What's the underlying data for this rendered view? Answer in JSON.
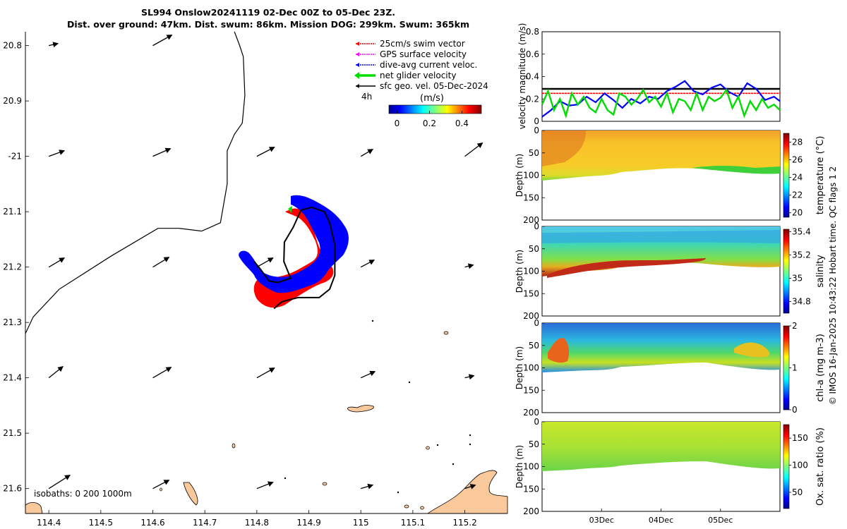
{
  "title": {
    "line1": "SL994 Onslow20241119 02-Dec 00Z to 05-Dec 23Z.",
    "line2": "Dist. over ground: 47km. Dist. swum: 86km. Mission DOG: 299km. Swum: 365km"
  },
  "colors": {
    "swim_vector": "#ff0000",
    "gps_surface": "#ff00ff",
    "dive_avg_current": "#0000ff",
    "net_glider": "#00dd00",
    "sfc_geo_vel": "#000000",
    "land": "#f9c89b",
    "glider_red": "#ff0000",
    "glider_blue": "#0000ff"
  },
  "chart_data": [
    {
      "type": "map",
      "title": "SL994 Onslow20241119 02-Dec 00Z to 05-Dec 23Z.",
      "xlim": [
        114.355,
        115.282
      ],
      "ylim": [
        -21.645,
        -20.775
      ],
      "xticks": [
        114.4,
        114.5,
        114.6,
        114.7,
        114.8,
        114.9,
        115,
        115.1,
        115.2
      ],
      "xtick_labels": [
        "114.4",
        "114.5",
        "114.6",
        "114.7",
        "114.8",
        "114.9",
        "115",
        "115.1",
        "115.2"
      ],
      "yticks": [
        -20.8,
        -20.9,
        -21.0,
        -21.1,
        -21.2,
        -21.3,
        -21.4,
        -21.5,
        -21.6
      ],
      "ytick_labels": [
        "20.8",
        "20.9",
        "-21",
        "21.1",
        "21.2",
        "21.3",
        "21.4",
        "21.5",
        "21.6"
      ],
      "legend": {
        "placement": "top-right",
        "items": [
          "25cm/s swim vector",
          "GPS surface velocity",
          "dive-avg current veloc.",
          "net glider velocity",
          "sfc geo. vel. 05-Dec-2024"
        ],
        "time_label": "4h",
        "colorbar_label": "(m/s)",
        "colorbar_ticks": [
          "0",
          "0.2",
          "0.4"
        ],
        "colorbar_range": [
          -0.05,
          0.52
        ]
      },
      "isobaths_label": "isobaths: 0   200  1000m",
      "geo_velocity_vectors": {
        "lon": [
          114.4,
          114.5,
          114.6,
          114.7,
          114.8,
          114.9,
          115.0,
          115.1,
          115.2
        ],
        "lat": [
          -20.8,
          -21.0,
          -21.2,
          -21.4,
          -21.6
        ],
        "u_ms": [
          [
            0.13,
            null,
            0.27,
            null,
            null,
            null,
            null,
            null,
            null
          ],
          [
            0.22,
            null,
            0.25,
            null,
            0.25,
            null,
            0.17,
            null,
            0.25
          ],
          [
            0.22,
            null,
            0.23,
            null,
            0.23,
            null,
            0.19,
            null,
            0.12
          ],
          [
            0.2,
            null,
            0.26,
            null,
            0.25,
            null,
            0.2,
            null,
            0.13
          ],
          [
            0.3,
            null,
            0.23,
            null,
            0.23,
            null,
            0.17,
            null,
            0.15
          ]
        ],
        "v_ms": [
          [
            0.03,
            null,
            0.15,
            null,
            null,
            null,
            null,
            null,
            null
          ],
          [
            0.08,
            null,
            0.11,
            null,
            0.13,
            null,
            0.1,
            null,
            0.19
          ],
          [
            0.13,
            null,
            0.14,
            null,
            0.13,
            null,
            0.1,
            null,
            0.03
          ],
          [
            0.16,
            null,
            0.15,
            null,
            0.14,
            null,
            0.09,
            null,
            0.03
          ],
          [
            0.19,
            null,
            0.12,
            null,
            0.09,
            null,
            0.05,
            null,
            0.05
          ]
        ]
      },
      "coastline": {
        "lon": [
          114.355,
          114.37,
          114.42,
          114.52,
          114.61,
          114.65,
          114.694,
          114.73,
          114.743,
          114.743,
          114.757,
          114.772,
          114.777,
          114.774,
          114.767,
          114.757
        ],
        "lat": [
          -21.32,
          -21.29,
          -21.24,
          -21.18,
          -21.13,
          -21.13,
          -21.135,
          -21.12,
          -21.05,
          -20.99,
          -20.96,
          -20.94,
          -20.89,
          -20.82,
          -20.8,
          -20.775
        ]
      },
      "glider_track": {
        "lon": [
          114.833,
          114.845,
          114.85,
          114.88,
          114.92,
          114.94,
          114.95,
          114.95,
          114.95,
          114.94,
          114.93,
          114.905,
          114.885,
          114.87,
          114.853,
          114.852,
          114.865,
          114.84,
          114.823,
          114.808,
          114.795
        ],
        "lat": [
          -21.275,
          -21.265,
          -21.262,
          -21.255,
          -21.255,
          -21.24,
          -21.215,
          -21.19,
          -21.16,
          -21.12,
          -21.1,
          -21.092,
          -21.097,
          -21.128,
          -21.155,
          -21.19,
          -21.22,
          -21.228,
          -21.225,
          -21.205,
          -21.19
        ]
      }
    },
    {
      "type": "line",
      "ylabel": "velocity magnitude (m/s)",
      "ylim": [
        0,
        0.8
      ],
      "yticks": [
        0,
        0.2,
        0.4,
        0.6,
        0.8
      ],
      "xlim_days": [
        0,
        4
      ],
      "series": [
        {
          "name": "sfc geo. vel.",
          "color": "#000000",
          "constant": 0.29
        },
        {
          "name": "25cm/s swim vector",
          "color": "#ff0000",
          "constant": 0.25
        },
        {
          "name": "dive-avg current veloc.",
          "color": "#0000ff",
          "x": [
            0.0,
            0.15,
            0.3,
            0.45,
            0.6,
            0.75,
            0.9,
            1.05,
            1.2,
            1.35,
            1.5,
            1.65,
            1.8,
            1.95,
            2.1,
            2.25,
            2.4,
            2.55,
            2.7,
            2.85,
            3.0,
            3.15,
            3.3,
            3.45,
            3.6,
            3.75,
            3.9,
            4.0
          ],
          "values": [
            0.04,
            0.1,
            0.18,
            0.14,
            0.15,
            0.22,
            0.17,
            0.25,
            0.19,
            0.12,
            0.2,
            0.16,
            0.22,
            0.2,
            0.27,
            0.31,
            0.36,
            0.27,
            0.24,
            0.3,
            0.33,
            0.26,
            0.22,
            0.34,
            0.29,
            0.19,
            0.22,
            0.18
          ]
        },
        {
          "name": "net glider velocity",
          "color": "#00dd00",
          "x": [
            0.0,
            0.1,
            0.2,
            0.3,
            0.4,
            0.5,
            0.6,
            0.7,
            0.8,
            0.9,
            1.0,
            1.1,
            1.2,
            1.3,
            1.4,
            1.5,
            1.6,
            1.7,
            1.8,
            1.9,
            2.0,
            2.1,
            2.2,
            2.3,
            2.4,
            2.5,
            2.6,
            2.7,
            2.8,
            2.9,
            3.0,
            3.1,
            3.2,
            3.3,
            3.4,
            3.5,
            3.6,
            3.7,
            3.8,
            3.9,
            4.0
          ],
          "values": [
            0.15,
            0.27,
            0.1,
            0.2,
            0.05,
            0.25,
            0.15,
            0.22,
            0.12,
            0.08,
            0.2,
            0.1,
            0.06,
            0.25,
            0.22,
            0.15,
            0.2,
            0.28,
            0.17,
            0.22,
            0.13,
            0.25,
            0.08,
            0.2,
            0.18,
            0.1,
            0.25,
            0.1,
            0.22,
            0.18,
            0.21,
            0.28,
            0.12,
            0.22,
            0.05,
            0.18,
            0.1,
            0.2,
            0.12,
            0.15,
            0.1
          ]
        }
      ]
    },
    {
      "type": "heatmap",
      "variable": "temperature",
      "ylabel": "Depth (m)",
      "ylim": [
        0,
        200
      ],
      "yticks": [
        0,
        50,
        100,
        150,
        200
      ],
      "colorbar_label": "temperature (°C)",
      "colorbar_range": [
        19.5,
        29
      ],
      "colorbar_ticks": [
        20,
        22,
        24,
        26,
        28
      ]
    },
    {
      "type": "heatmap",
      "variable": "salinity",
      "ylabel": "Depth (m)",
      "ylim": [
        0,
        200
      ],
      "yticks": [
        0,
        50,
        100,
        150,
        200
      ],
      "colorbar_label": "salinity",
      "colorbar_range": [
        34.7,
        35.42
      ],
      "colorbar_ticks": [
        34.8,
        35,
        35.2,
        35.4
      ]
    },
    {
      "type": "heatmap",
      "variable": "chl-a",
      "ylabel": "Depth (m)",
      "ylim": [
        0,
        200
      ],
      "yticks": [
        0,
        50,
        100,
        150,
        200
      ],
      "colorbar_label": "chl-a (mg m-3)",
      "colorbar_range": [
        0,
        2
      ],
      "colorbar_ticks": [
        0,
        1,
        2
      ]
    },
    {
      "type": "heatmap",
      "variable": "oxygen saturation",
      "ylabel": "Depth (m)",
      "ylim": [
        0,
        200
      ],
      "yticks": [
        0,
        50,
        100,
        150,
        200
      ],
      "colorbar_label": "Ox. sat. ratio (%)",
      "colorbar_range": [
        20,
        175
      ],
      "colorbar_ticks": [
        50,
        100,
        150
      ],
      "xticks_days": [
        1,
        2,
        3
      ],
      "xtick_labels": [
        "03Dec",
        "04Dec",
        "05Dec"
      ]
    }
  ],
  "footer": {
    "timestamp": "© IMOS 16-Jan-2025 10:43:22 Hobart time. QC flags 1  2"
  }
}
